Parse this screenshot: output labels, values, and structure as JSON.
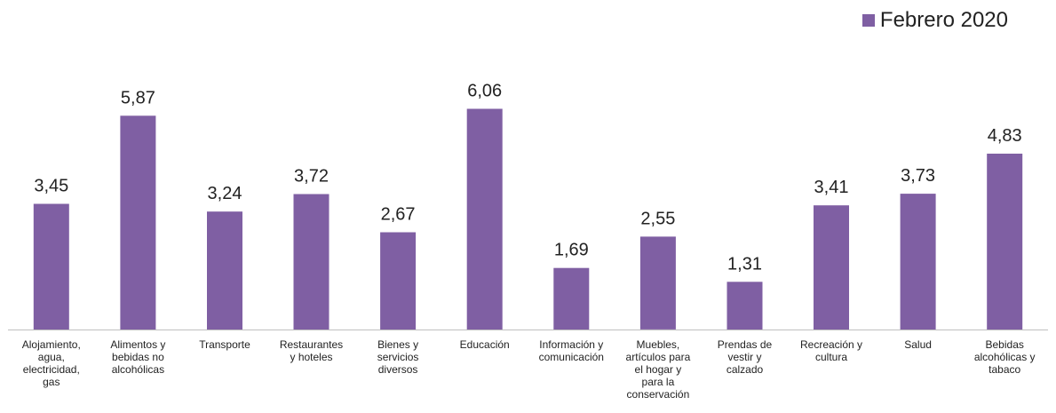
{
  "legend": {
    "label": "Febrero 2020"
  },
  "colors": {
    "bar": "#7f5fa3",
    "axis": "#bfbfbf",
    "text": "#222222"
  },
  "chart_data": {
    "type": "bar",
    "title": "",
    "xlabel": "",
    "ylabel": "",
    "ylim": [
      0,
      7
    ],
    "grid": false,
    "legend_position": "top-right",
    "categories": [
      "Alojamiento, agua, electricidad, gas",
      "Alimentos y bebidas no alcohólicas",
      "Transporte",
      "Restaurantes y hoteles",
      "Bienes y servicios diversos",
      "Educación",
      "Información y comunicación",
      "Muebles, artículos para el hogar y para la conservación",
      "Prendas de vestir y calzado",
      "Recreación y cultura",
      "Salud",
      "Bebidas alcohólicas y tabaco"
    ],
    "category_lines": [
      [
        "Alojamiento,",
        "agua,",
        "electricidad,",
        "gas"
      ],
      [
        "Alimentos y",
        "bebidas no",
        "alcohólicas"
      ],
      [
        "Transporte"
      ],
      [
        "Restaurantes",
        "y hoteles"
      ],
      [
        "Bienes y",
        "servicios",
        "diversos"
      ],
      [
        "Educación"
      ],
      [
        "Información y",
        "comunicación"
      ],
      [
        "Muebles,",
        "artículos para",
        "el hogar y",
        "para la",
        "conservación"
      ],
      [
        "Prendas de",
        "vestir y",
        "calzado"
      ],
      [
        "Recreación y",
        "cultura"
      ],
      [
        "Salud"
      ],
      [
        "Bebidas",
        "alcohólicas y",
        "tabaco"
      ]
    ],
    "series": [
      {
        "name": "Febrero 2020",
        "values": [
          3.45,
          5.87,
          3.24,
          3.72,
          2.67,
          6.06,
          1.69,
          2.55,
          1.31,
          3.41,
          3.73,
          4.83
        ],
        "labels": [
          "3,45",
          "5,87",
          "3,24",
          "3,72",
          "2,67",
          "6,06",
          "1,69",
          "2,55",
          "1,31",
          "3,41",
          "3,73",
          "4,83"
        ]
      }
    ]
  }
}
